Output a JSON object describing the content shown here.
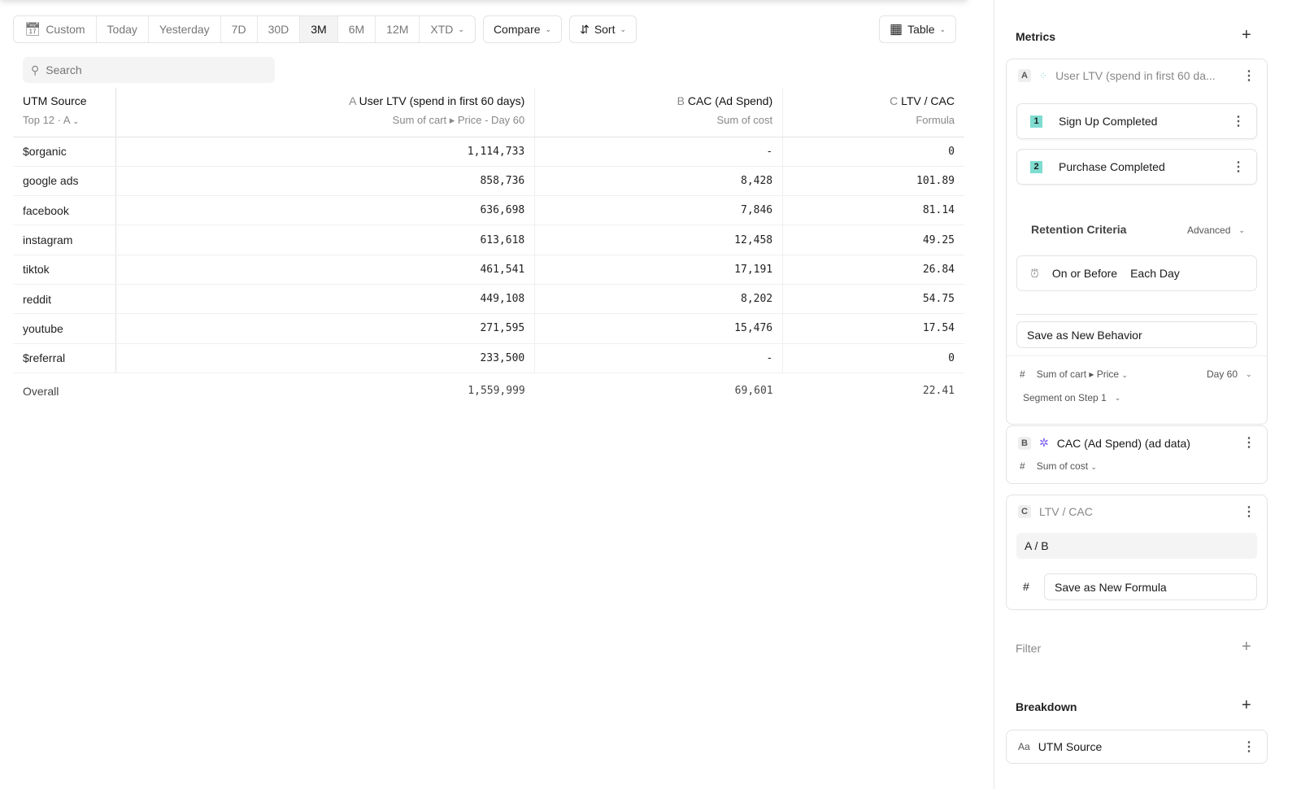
{
  "toolbar": {
    "date_ranges": [
      "Custom",
      "Today",
      "Yesterday",
      "7D",
      "30D",
      "3M",
      "6M",
      "12M",
      "XTD"
    ],
    "active_range": "3M",
    "compare": "Compare",
    "sort": "Sort",
    "view": "Table"
  },
  "search": {
    "placeholder": "Search"
  },
  "table": {
    "columns": [
      {
        "title": "UTM Source",
        "sub": "Top 12 · A"
      },
      {
        "letter": "A",
        "title": "User LTV (spend in first 60 days)",
        "sub": "Sum of cart ▸ Price - Day 60"
      },
      {
        "letter": "B",
        "title": "CAC (Ad Spend)",
        "sub": "Sum of cost"
      },
      {
        "letter": "C",
        "title": "LTV / CAC",
        "sub": "Formula"
      }
    ],
    "rows": [
      [
        "$organic",
        "1,114,733",
        "-",
        "0"
      ],
      [
        "google ads",
        "858,736",
        "8,428",
        "101.89"
      ],
      [
        "facebook",
        "636,698",
        "7,846",
        "81.14"
      ],
      [
        "instagram",
        "613,618",
        "12,458",
        "49.25"
      ],
      [
        "tiktok",
        "461,541",
        "17,191",
        "26.84"
      ],
      [
        "reddit",
        "449,108",
        "8,202",
        "54.75"
      ],
      [
        "youtube",
        "271,595",
        "15,476",
        "17.54"
      ],
      [
        "$referral",
        "233,500",
        "-",
        "0"
      ]
    ],
    "overall": [
      "Overall",
      "1,559,999",
      "69,601",
      "22.41"
    ]
  },
  "sidebar": {
    "metrics_title": "Metrics",
    "metric_a": {
      "letter": "A",
      "title": "User LTV (spend in first 60 da...",
      "steps": [
        "Sign Up Completed",
        "Purchase Completed"
      ],
      "retention_title": "Retention Criteria",
      "advanced": "Advanced",
      "criteria_1": "On or Before",
      "criteria_2": "Each Day",
      "save": "Save as New Behavior",
      "hash": "#",
      "measure": "Sum of cart ▸ Price",
      "day": "Day 60",
      "segment": "Segment on Step 1"
    },
    "metric_b": {
      "letter": "B",
      "title": "CAC (Ad Spend) (ad data)",
      "hash": "#",
      "measure": "Sum of cost"
    },
    "metric_c": {
      "letter": "C",
      "title": "LTV / CAC",
      "formula": "A / B",
      "hash": "#",
      "save": "Save as New Formula"
    },
    "filter_title": "Filter",
    "breakdown_title": "Breakdown",
    "breakdown": {
      "prefix": "Aa",
      "label": "UTM Source"
    }
  },
  "colors": {
    "step_badge": "#7fdcd0",
    "metric_b_icon": "#7b5cf0"
  }
}
